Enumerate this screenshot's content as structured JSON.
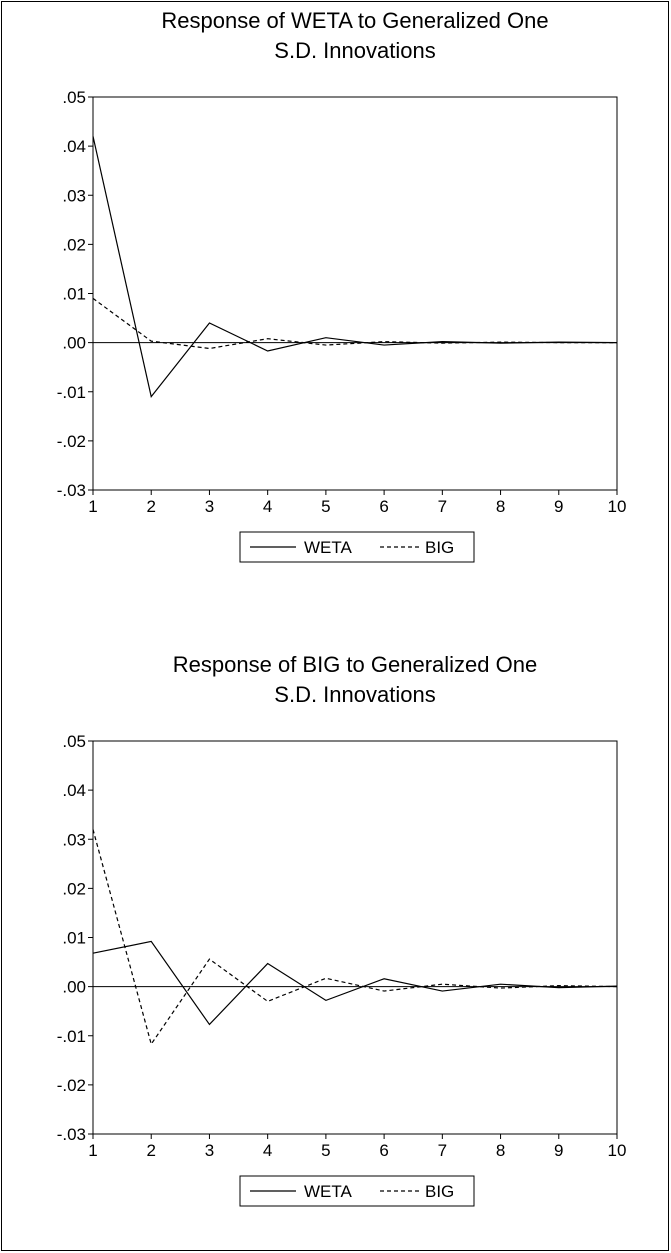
{
  "chart_data": [
    {
      "type": "line",
      "title_lines": [
        "Response of WETA to Generalized One",
        "S.D. Innovations"
      ],
      "xlabel": "",
      "ylabel": "",
      "x": [
        1,
        2,
        3,
        4,
        5,
        6,
        7,
        8,
        9,
        10
      ],
      "xlim": [
        1,
        10
      ],
      "ylim": [
        -0.03,
        0.05
      ],
      "y_ticks": [
        ".05",
        ".04",
        ".03",
        ".02",
        ".01",
        ".00",
        "-.01",
        "-.02",
        "-.03"
      ],
      "x_ticks": [
        "1",
        "2",
        "3",
        "4",
        "5",
        "6",
        "7",
        "8",
        "9",
        "10"
      ],
      "grid": false,
      "zero_line": true,
      "legend_position": "bottom-center",
      "series": [
        {
          "name": "WETA",
          "style": "solid",
          "values": [
            0.042,
            -0.011,
            0.004,
            -0.0017,
            0.001,
            -0.0005,
            0.0002,
            -0.0001,
            0.0001,
            0.0
          ]
        },
        {
          "name": "BIG",
          "style": "dashed",
          "values": [
            0.009,
            0.0003,
            -0.0012,
            0.0008,
            -0.0005,
            0.0002,
            -0.0001,
            0.0001,
            0.0,
            0.0
          ]
        }
      ]
    },
    {
      "type": "line",
      "title_lines": [
        "Response of BIG to Generalized One",
        "S.D. Innovations"
      ],
      "xlabel": "",
      "ylabel": "",
      "x": [
        1,
        2,
        3,
        4,
        5,
        6,
        7,
        8,
        9,
        10
      ],
      "xlim": [
        1,
        10
      ],
      "ylim": [
        -0.03,
        0.05
      ],
      "y_ticks": [
        ".05",
        ".04",
        ".03",
        ".02",
        ".01",
        ".00",
        "-.01",
        "-.02",
        "-.03"
      ],
      "x_ticks": [
        "1",
        "2",
        "3",
        "4",
        "5",
        "6",
        "7",
        "8",
        "9",
        "10"
      ],
      "grid": false,
      "zero_line": true,
      "legend_position": "bottom-center",
      "series": [
        {
          "name": "WETA",
          "style": "solid",
          "values": [
            0.0068,
            0.0092,
            -0.0077,
            0.0047,
            -0.0028,
            0.0016,
            -0.0009,
            0.0005,
            -0.0002,
            0.0001
          ]
        },
        {
          "name": "BIG",
          "style": "dashed",
          "values": [
            0.032,
            -0.0117,
            0.0056,
            -0.003,
            0.0017,
            -0.0009,
            0.0005,
            -0.0003,
            0.0002,
            0.0
          ]
        }
      ]
    }
  ]
}
